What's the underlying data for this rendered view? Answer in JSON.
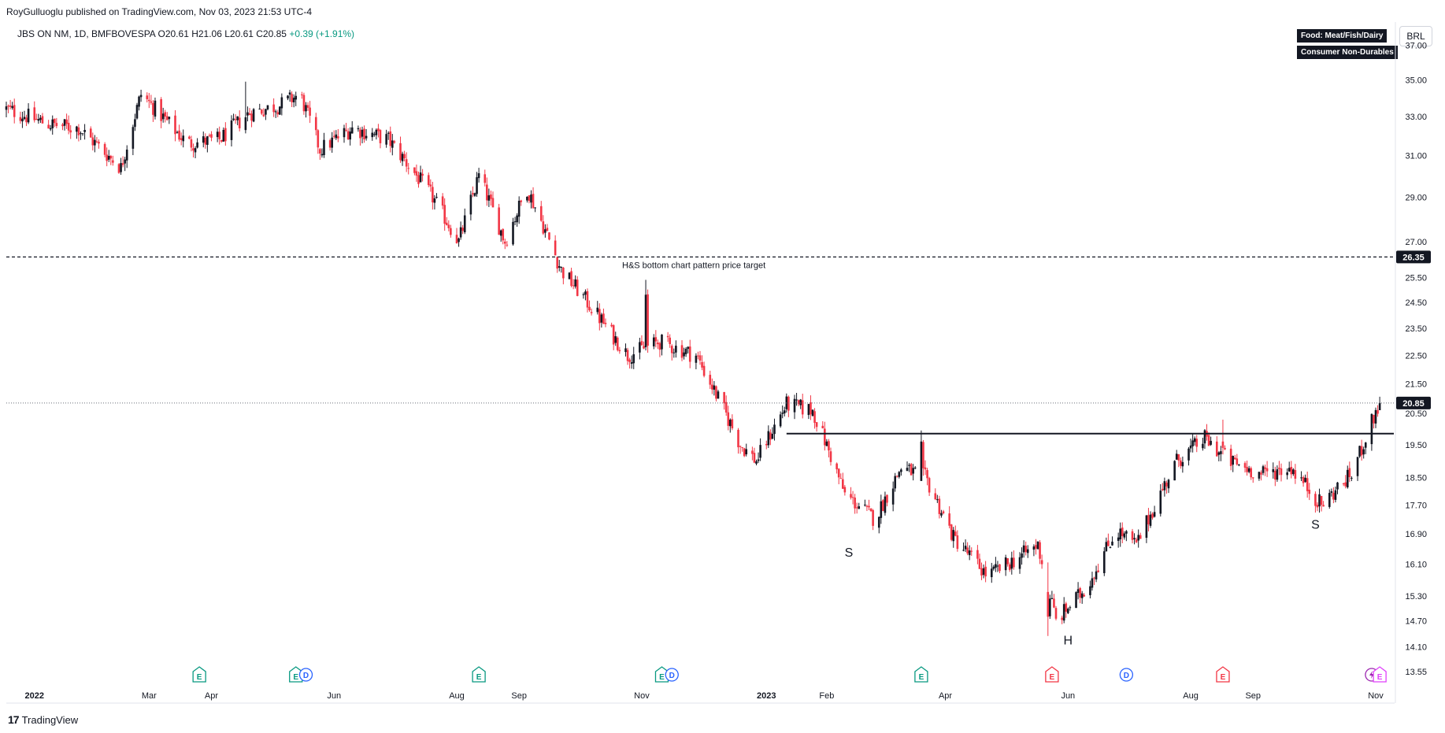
{
  "header": {
    "published": "RoyGulluoglu published on TradingView.com, Nov 03, 2023 21:53 UTC-4",
    "symbol_label": "JBS ON NM, 1D, BMFBOVESPA",
    "ohlc": "O20.61 H21.06 L20.61 C20.85",
    "change": "+0.39 (+1.91%)",
    "currency": "BRL",
    "sector_tags": [
      "Food: Meat/Fish/Dairy",
      "Consumer Non-Durables"
    ]
  },
  "footer": {
    "logo_mark": "17",
    "logo_text": "TradingView"
  },
  "colors": {
    "up": "#131722",
    "down": "#f23645",
    "earnings": "#089981",
    "earnings_future": "#f23645",
    "dividend": "#2962ff",
    "split": "#9c27b0"
  },
  "chart_data": {
    "type": "candlestick",
    "title": "JBS ON NM, 1D, BMFBOVESPA",
    "price_axis": {
      "ticks": [
        37.0,
        35.0,
        33.0,
        31.0,
        29.0,
        27.0,
        25.5,
        24.5,
        23.5,
        22.5,
        21.5,
        20.5,
        19.5,
        18.5,
        17.7,
        16.9,
        16.1,
        15.3,
        14.7,
        14.1,
        13.55
      ],
      "tick_labels": [
        "37.00",
        "35.00",
        "33.00",
        "31.00",
        "29.00",
        "27.00",
        "25.50",
        "24.50",
        "23.50",
        "22.50",
        "21.50",
        "20.50",
        "19.50",
        "18.50",
        "17.70",
        "16.90",
        "16.10",
        "15.30",
        "14.70",
        "14.10",
        "13.55"
      ],
      "scale": "log",
      "ylim": [
        13.1,
        38.4
      ]
    },
    "time_axis": {
      "range": [
        "2021-12-20",
        "2023-11-10"
      ],
      "ticks": [
        {
          "date": "2022-01-03",
          "label": "2022",
          "bold": true
        },
        {
          "date": "2022-03-01",
          "label": "Mar"
        },
        {
          "date": "2022-04-01",
          "label": "Apr"
        },
        {
          "date": "2022-06-01",
          "label": "Jun"
        },
        {
          "date": "2022-08-01",
          "label": "Aug"
        },
        {
          "date": "2022-09-01",
          "label": "Sep"
        },
        {
          "date": "2022-11-01",
          "label": "Nov"
        },
        {
          "date": "2023-01-02",
          "label": "2023",
          "bold": true
        },
        {
          "date": "2023-02-01",
          "label": "Feb"
        },
        {
          "date": "2023-04-01",
          "label": "Apr"
        },
        {
          "date": "2023-06-01",
          "label": "Jun"
        },
        {
          "date": "2023-08-01",
          "label": "Aug"
        },
        {
          "date": "2023-09-01",
          "label": "Sep"
        },
        {
          "date": "2023-11-01",
          "label": "Nov"
        }
      ]
    },
    "series": [
      {
        "name": "JBS ON NM",
        "anchors": [
          [
            "2021-12-20",
            33.4
          ],
          [
            "2022-01-10",
            32.6
          ],
          [
            "2022-01-25",
            32.4
          ],
          [
            "2022-02-15",
            30.4
          ],
          [
            "2022-02-25",
            34.2
          ],
          [
            "2022-03-20",
            31.6
          ],
          [
            "2022-04-05",
            31.8
          ],
          [
            "2022-04-20",
            33.2
          ],
          [
            "2022-05-05",
            33.6
          ],
          [
            "2022-05-15",
            34.2
          ],
          [
            "2022-05-25",
            31.3
          ],
          [
            "2022-06-10",
            32.4
          ],
          [
            "2022-06-28",
            31.8
          ],
          [
            "2022-07-20",
            29.0
          ],
          [
            "2022-08-02",
            27.0
          ],
          [
            "2022-08-12",
            30.0
          ],
          [
            "2022-08-25",
            27.0
          ],
          [
            "2022-09-05",
            29.4
          ],
          [
            "2022-09-22",
            25.8
          ],
          [
            "2022-10-10",
            24.0
          ],
          [
            "2022-10-25",
            22.5
          ],
          [
            "2022-11-10",
            23.0
          ],
          [
            "2022-11-28",
            22.5
          ],
          [
            "2022-12-20",
            19.5
          ],
          [
            "2022-12-28",
            19.0
          ],
          [
            "2023-01-12",
            20.8
          ],
          [
            "2023-01-25",
            20.6
          ],
          [
            "2023-02-10",
            18.0
          ],
          [
            "2023-02-25",
            17.3
          ],
          [
            "2023-03-10",
            18.8
          ],
          [
            "2023-03-22",
            18.5
          ],
          [
            "2023-04-05",
            16.8
          ],
          [
            "2023-04-22",
            15.8
          ],
          [
            "2023-05-05",
            16.2
          ],
          [
            "2023-05-17",
            16.6
          ],
          [
            "2023-05-26",
            14.7
          ],
          [
            "2023-06-10",
            15.5
          ],
          [
            "2023-06-25",
            17.0
          ],
          [
            "2023-07-05",
            16.6
          ],
          [
            "2023-07-15",
            17.8
          ],
          [
            "2023-07-25",
            19.0
          ],
          [
            "2023-08-08",
            19.7
          ],
          [
            "2023-08-20",
            19.0
          ],
          [
            "2023-09-05",
            18.6
          ],
          [
            "2023-09-20",
            18.8
          ],
          [
            "2023-10-05",
            17.7
          ],
          [
            "2023-10-20",
            18.6
          ],
          [
            "2023-11-03",
            20.85
          ]
        ],
        "spikes": [
          {
            "date": "2022-04-18",
            "high": 34.9
          },
          {
            "date": "2022-11-03",
            "high": 25.4,
            "open": 22.8,
            "close": 24.8
          },
          {
            "date": "2023-03-20",
            "high": 19.95,
            "open": 18.4,
            "close": 19.6
          },
          {
            "date": "2023-05-22",
            "low": 14.35,
            "open": 15.4,
            "close": 14.8
          },
          {
            "date": "2023-08-17",
            "high": 20.3,
            "open": 19.6,
            "close": 19.4
          },
          {
            "date": "2023-11-03",
            "open": 20.61,
            "high": 21.06,
            "low": 20.61,
            "close": 20.85
          }
        ]
      }
    ],
    "horizontal_lines": [
      {
        "price": 26.35,
        "style": "dashed",
        "label": "H&S bottom chart pattern price target",
        "start": "2021-12-20"
      },
      {
        "price": 19.85,
        "style": "solid",
        "start": "2023-01-12",
        "end": "2023-11-10"
      },
      {
        "price": 20.85,
        "style": "dotted",
        "start": "2021-12-20"
      }
    ],
    "price_labels": [
      {
        "price": 26.35,
        "text": "26.35"
      },
      {
        "price": 20.85,
        "text": "20.85"
      }
    ],
    "annotations": [
      {
        "text": "S",
        "date": "2023-02-12",
        "price": 16.4
      },
      {
        "text": "H",
        "date": "2023-06-01",
        "price": 14.25
      },
      {
        "text": "S",
        "date": "2023-10-02",
        "price": 17.15
      }
    ],
    "events": [
      {
        "date": "2022-03-26",
        "type": "E"
      },
      {
        "date": "2022-05-13",
        "type": "E"
      },
      {
        "date": "2022-05-18",
        "type": "D"
      },
      {
        "date": "2022-08-12",
        "type": "E"
      },
      {
        "date": "2022-11-11",
        "type": "E"
      },
      {
        "date": "2022-11-16",
        "type": "D"
      },
      {
        "date": "2023-03-20",
        "type": "E"
      },
      {
        "date": "2023-05-24",
        "type": "E",
        "variant": "future"
      },
      {
        "date": "2023-06-30",
        "type": "D"
      },
      {
        "date": "2023-08-17",
        "type": "E",
        "variant": "future"
      },
      {
        "date": "2023-10-30",
        "type": "S"
      },
      {
        "date": "2023-11-03",
        "type": "E",
        "variant": "split"
      }
    ]
  }
}
